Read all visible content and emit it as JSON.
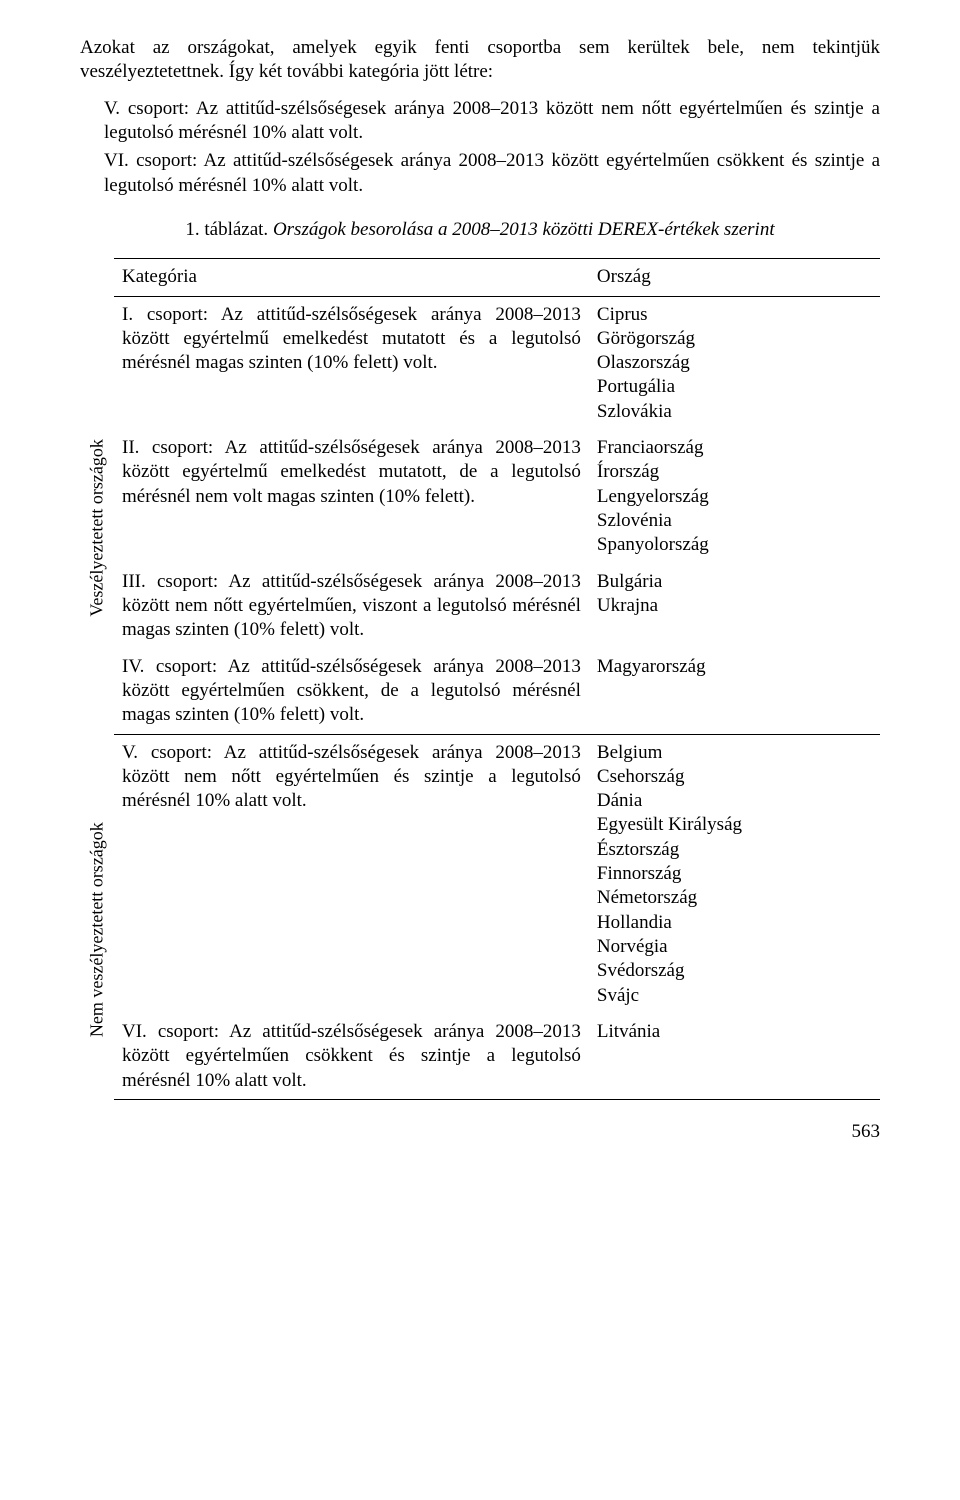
{
  "intro": "Azokat az országokat, amelyek egyik fenti csoportba sem kerültek bele, nem tekintjük veszélyeztetettnek. Így két további kategória jött létre:",
  "groups": {
    "v": "V. csoport: Az attitűd-szélsőségesek aránya 2008–2013 között nem nőtt egyértelműen és szintje a legutolsó mérésnél 10% alatt volt.",
    "vi": "VI. csoport: Az attitűd-szélsőségesek aránya 2008–2013 között egyértelműen csökkent és szintje a legutolsó mérésnél 10% alatt volt."
  },
  "caption": {
    "num": "1. táblázat.",
    "title": "Országok besorolása a 2008–2013 közötti DEREX-értékek szerint"
  },
  "header": {
    "cat": "Kategória",
    "country": "Ország"
  },
  "sideLabels": {
    "danger": "Veszélyeztetett országok",
    "safe": "Nem veszélyeztetett országok"
  },
  "rows": [
    {
      "cat": "I. csoport: Az attitűd-szélsőségesek aránya 2008–2013 között egyértelmű emelkedést mutatott és a legutolsó mérésnél magas szinten (10% felett) volt.",
      "countries": "Ciprus\nGörögország\nOlaszország\nPortugália\nSzlovákia"
    },
    {
      "cat": "II. csoport: Az attitűd-szélsőségesek aránya 2008–2013 között egyértelmű emelkedést mutatott, de a legutolsó mérésnél nem volt magas szinten (10% felett).",
      "countries": "Franciaország\nÍrország\nLengyelország\nSzlovénia\nSpanyolország"
    },
    {
      "cat": "III. csoport: Az attitűd-szélsőségesek aránya 2008–2013 között nem nőtt egyértelműen, viszont a legutolsó mérésnél magas szinten (10% felett) volt.",
      "countries": "Bulgária\nUkrajna"
    },
    {
      "cat": "IV. csoport: Az attitűd-szélsőségesek aránya 2008–2013 között egyértelműen csökkent, de a legutolsó mérésnél magas szinten (10% felett) volt.",
      "countries": "Magyarország"
    },
    {
      "cat": "V. csoport: Az attitűd-szélsőségesek aránya 2008–2013 között nem nőtt egyértelműen és szintje a legutolsó mérésnél 10% alatt volt.",
      "countries": "Belgium\nCsehország\nDánia\nEgyesült Királyság\nÉsztország\nFinnország\nNémetország\nHollandia\nNorvégia\nSvédország\nSvájc"
    },
    {
      "cat": "VI. csoport: Az attitűd-szélsőségesek aránya 2008–2013 között egyértelműen csökkent és szintje a legutolsó mérésnél 10% alatt volt.",
      "countries": "Litvánia"
    }
  ],
  "pageNumber": "563"
}
